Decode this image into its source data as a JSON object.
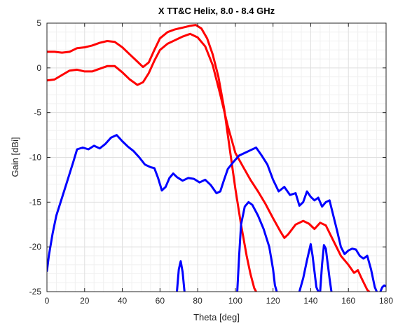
{
  "chart_data": {
    "type": "line",
    "title": "X TT&C Helix, 8.0 - 8.4 GHz",
    "xlabel": "Theta [deg]",
    "ylabel": "Gain [dBi]",
    "xlim": [
      0,
      180
    ],
    "ylim": [
      -25,
      5
    ],
    "xticks": [
      0,
      20,
      40,
      60,
      80,
      100,
      120,
      140,
      160,
      180
    ],
    "yticks": [
      -25,
      -20,
      -15,
      -10,
      -5,
      0,
      5
    ],
    "grid": true,
    "colors": {
      "red": "#ff0000",
      "blue": "#0000ff"
    },
    "series": [
      {
        "color": "#ff0000",
        "points": [
          [
            0,
            1.8
          ],
          [
            4,
            1.8
          ],
          [
            8,
            1.7
          ],
          [
            12,
            1.8
          ],
          [
            16,
            2.2
          ],
          [
            20,
            2.3
          ],
          [
            24,
            2.5
          ],
          [
            28,
            2.8
          ],
          [
            32,
            3.0
          ],
          [
            36,
            2.9
          ],
          [
            40,
            2.3
          ],
          [
            44,
            1.5
          ],
          [
            48,
            0.7
          ],
          [
            51,
            0.1
          ],
          [
            54,
            0.6
          ],
          [
            57,
            2.0
          ],
          [
            60,
            3.3
          ],
          [
            64,
            4.0
          ],
          [
            68,
            4.3
          ],
          [
            72,
            4.5
          ],
          [
            76,
            4.7
          ],
          [
            79,
            4.8
          ],
          [
            82,
            4.4
          ],
          [
            85,
            3.3
          ],
          [
            88,
            1.5
          ],
          [
            91,
            -1.0
          ],
          [
            94,
            -4.5
          ],
          [
            97,
            -9.0
          ],
          [
            100,
            -13.5
          ],
          [
            103,
            -17.5
          ],
          [
            106,
            -21.0
          ],
          [
            108,
            -23.0
          ],
          [
            110,
            -24.6
          ],
          [
            111,
            -25
          ]
        ]
      },
      {
        "color": "#ff0000",
        "points": [
          [
            0,
            -1.4
          ],
          [
            4,
            -1.3
          ],
          [
            8,
            -0.8
          ],
          [
            12,
            -0.3
          ],
          [
            16,
            -0.2
          ],
          [
            20,
            -0.4
          ],
          [
            24,
            -0.4
          ],
          [
            28,
            -0.1
          ],
          [
            32,
            0.2
          ],
          [
            36,
            0.2
          ],
          [
            40,
            -0.5
          ],
          [
            44,
            -1.3
          ],
          [
            48,
            -1.9
          ],
          [
            51,
            -1.6
          ],
          [
            54,
            -0.6
          ],
          [
            57,
            0.8
          ],
          [
            60,
            2.0
          ],
          [
            64,
            2.7
          ],
          [
            68,
            3.1
          ],
          [
            72,
            3.5
          ],
          [
            76,
            3.8
          ],
          [
            80,
            3.4
          ],
          [
            84,
            2.4
          ],
          [
            88,
            0.3
          ],
          [
            92,
            -3.0
          ],
          [
            96,
            -6.5
          ],
          [
            100,
            -9.5
          ],
          [
            104,
            -11.0
          ],
          [
            108,
            -12.5
          ],
          [
            112,
            -13.8
          ],
          [
            116,
            -15.2
          ],
          [
            120,
            -16.8
          ],
          [
            124,
            -18.3
          ],
          [
            126,
            -19.0
          ],
          [
            128,
            -18.6
          ],
          [
            132,
            -17.5
          ],
          [
            136,
            -17.1
          ],
          [
            139,
            -17.4
          ],
          [
            142,
            -18.0
          ],
          [
            145,
            -17.3
          ],
          [
            148,
            -17.6
          ],
          [
            152,
            -19.3
          ],
          [
            156,
            -21.0
          ],
          [
            160,
            -22.0
          ],
          [
            163,
            -22.9
          ],
          [
            165,
            -22.6
          ],
          [
            167,
            -23.5
          ],
          [
            170,
            -24.8
          ],
          [
            171,
            -25
          ]
        ]
      },
      {
        "color": "#0000ff",
        "points": [
          [
            0,
            -22.7
          ],
          [
            1,
            -21.0
          ],
          [
            3,
            -18.5
          ],
          [
            5,
            -16.5
          ],
          [
            8,
            -14.5
          ],
          [
            11,
            -12.5
          ],
          [
            14,
            -10.5
          ],
          [
            16,
            -9.1
          ],
          [
            19,
            -8.9
          ],
          [
            22,
            -9.1
          ],
          [
            25,
            -8.7
          ],
          [
            28,
            -9.0
          ],
          [
            31,
            -8.5
          ],
          [
            34,
            -7.8
          ],
          [
            37,
            -7.5
          ],
          [
            40,
            -8.2
          ],
          [
            43,
            -8.8
          ],
          [
            46,
            -9.3
          ],
          [
            49,
            -10.0
          ],
          [
            52,
            -10.8
          ],
          [
            55,
            -11.1
          ],
          [
            57,
            -11.2
          ],
          [
            59,
            -12.3
          ],
          [
            61,
            -13.7
          ],
          [
            63,
            -13.3
          ],
          [
            65,
            -12.3
          ],
          [
            67,
            -11.8
          ],
          [
            69,
            -12.2
          ],
          [
            72,
            -12.6
          ],
          [
            75,
            -12.3
          ],
          [
            78,
            -12.4
          ],
          [
            81,
            -12.8
          ],
          [
            84,
            -12.5
          ],
          [
            87,
            -13.1
          ],
          [
            90,
            -14.0
          ],
          [
            92,
            -13.8
          ],
          [
            94,
            -12.5
          ],
          [
            96,
            -11.3
          ],
          [
            99,
            -10.5
          ],
          [
            102,
            -9.8
          ],
          [
            105,
            -9.5
          ],
          [
            108,
            -9.2
          ],
          [
            111,
            -8.9
          ],
          [
            114,
            -9.8
          ],
          [
            117,
            -10.8
          ],
          [
            120,
            -12.5
          ],
          [
            123,
            -13.8
          ],
          [
            126,
            -13.3
          ],
          [
            129,
            -14.2
          ],
          [
            132,
            -14.0
          ],
          [
            134,
            -15.4
          ],
          [
            136,
            -15.0
          ],
          [
            138,
            -13.8
          ],
          [
            140,
            -14.4
          ],
          [
            142,
            -14.8
          ],
          [
            144,
            -14.5
          ],
          [
            146,
            -15.5
          ],
          [
            148,
            -15.0
          ],
          [
            150,
            -14.8
          ],
          [
            152,
            -16.5
          ],
          [
            154,
            -18.2
          ],
          [
            156,
            -20.0
          ],
          [
            158,
            -20.8
          ],
          [
            160,
            -20.4
          ],
          [
            162,
            -20.2
          ],
          [
            164,
            -20.3
          ],
          [
            166,
            -21.0
          ],
          [
            168,
            -21.3
          ],
          [
            170,
            -21.0
          ],
          [
            172,
            -22.5
          ],
          [
            174,
            -24.5
          ],
          [
            175,
            -25
          ]
        ]
      },
      {
        "color": "#0000ff",
        "points": [
          [
            69,
            -25
          ],
          [
            70,
            -22.5
          ],
          [
            71,
            -21.6
          ],
          [
            72,
            -22.8
          ],
          [
            73,
            -25
          ]
        ]
      },
      {
        "color": "#0000ff",
        "points": [
          [
            101,
            -25
          ],
          [
            102,
            -21.0
          ],
          [
            103,
            -17.5
          ],
          [
            105,
            -15.5
          ],
          [
            107,
            -15.0
          ],
          [
            109,
            -15.3
          ],
          [
            112,
            -16.5
          ],
          [
            115,
            -18.0
          ],
          [
            118,
            -20.0
          ],
          [
            120,
            -22.5
          ],
          [
            121,
            -24.3
          ],
          [
            122,
            -25
          ]
        ]
      },
      {
        "color": "#0000ff",
        "points": [
          [
            134,
            -25
          ],
          [
            136,
            -23.5
          ],
          [
            138,
            -21.5
          ],
          [
            140,
            -19.7
          ],
          [
            141,
            -21.0
          ],
          [
            143,
            -24.5
          ],
          [
            144,
            -25
          ]
        ]
      },
      {
        "color": "#0000ff",
        "points": [
          [
            145,
            -25
          ],
          [
            146,
            -22.0
          ],
          [
            147,
            -19.8
          ],
          [
            148,
            -20.2
          ],
          [
            150,
            -23.5
          ],
          [
            151,
            -25
          ]
        ]
      },
      {
        "color": "#0000ff",
        "points": [
          [
            177,
            -25
          ],
          [
            178,
            -24.5
          ],
          [
            179,
            -24.3
          ],
          [
            180,
            -24.4
          ]
        ]
      }
    ]
  }
}
